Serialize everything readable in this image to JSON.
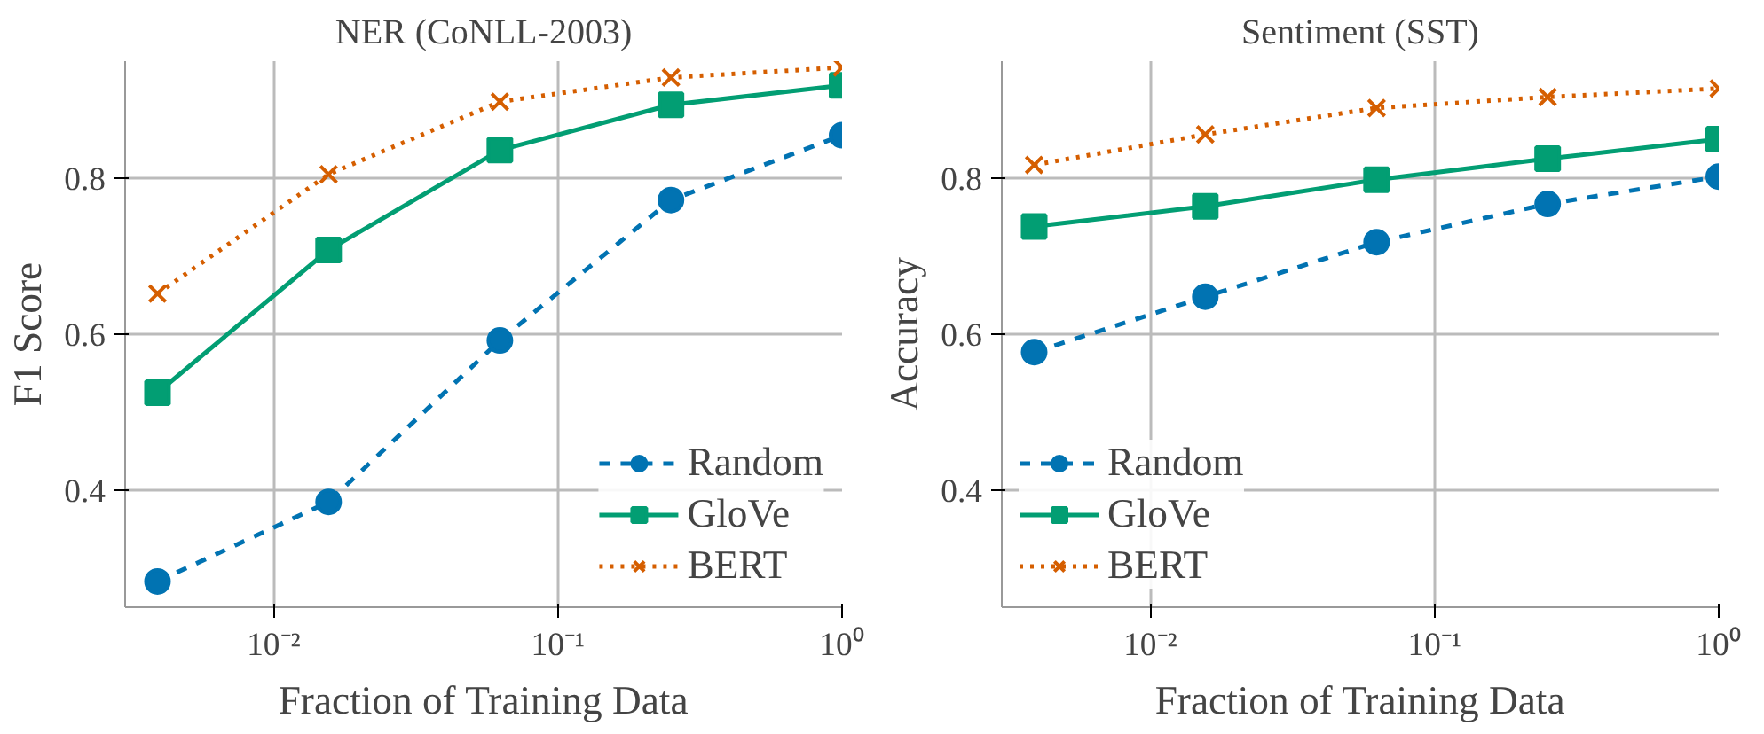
{
  "chart_data": [
    {
      "type": "line",
      "title": "NER (CoNLL-2003)",
      "xlabel": "Fraction of Training Data",
      "ylabel": "F1 Score",
      "log": "x",
      "grid": true,
      "legend": "bottom right",
      "x": [
        0.0039,
        0.0156,
        0.0625,
        0.25,
        1
      ],
      "xlim": [
        0.003,
        1
      ],
      "xticks": [
        {
          "value": 0.01,
          "label": "10⁻²"
        },
        {
          "value": 0.1,
          "label": "10⁻¹"
        },
        {
          "value": 1,
          "label": "10⁰"
        }
      ],
      "ylim": [
        0.25,
        0.95
      ],
      "yticks": [
        0.4,
        0.6,
        0.8
      ],
      "series": [
        {
          "name": "Random",
          "color": "#0173b2",
          "marker": "circle",
          "line_style": "dashed",
          "values": [
            0.283,
            0.385,
            0.592,
            0.772,
            0.855
          ]
        },
        {
          "name": "GloVe",
          "color": "#029e73",
          "marker": "square",
          "line_style": "solid",
          "values": [
            0.525,
            0.708,
            0.836,
            0.894,
            0.919
          ]
        },
        {
          "name": "BERT",
          "color": "#d55e00",
          "marker": "cross",
          "line_style": "dotted",
          "values": [
            0.652,
            0.805,
            0.898,
            0.929,
            0.942
          ]
        }
      ]
    },
    {
      "type": "line",
      "title": "Sentiment (SST)",
      "xlabel": "Fraction of Training Data",
      "ylabel": "Accuracy",
      "log": "x",
      "grid": true,
      "legend": "bottom left",
      "x": [
        0.0039,
        0.0156,
        0.0625,
        0.25,
        1
      ],
      "xlim": [
        0.003,
        1
      ],
      "xticks": [
        {
          "value": 0.01,
          "label": "10⁻²"
        },
        {
          "value": 0.1,
          "label": "10⁻¹"
        },
        {
          "value": 1,
          "label": "10⁰"
        }
      ],
      "ylim": [
        0.25,
        0.95
      ],
      "yticks": [
        0.4,
        0.6,
        0.8
      ],
      "series": [
        {
          "name": "Random",
          "color": "#0173b2",
          "marker": "circle",
          "line_style": "dashed",
          "values": [
            0.577,
            0.648,
            0.718,
            0.767,
            0.802
          ]
        },
        {
          "name": "GloVe",
          "color": "#029e73",
          "marker": "square",
          "line_style": "solid",
          "values": [
            0.738,
            0.764,
            0.798,
            0.825,
            0.85
          ]
        },
        {
          "name": "BERT",
          "color": "#d55e00",
          "marker": "cross",
          "line_style": "dotted",
          "values": [
            0.817,
            0.856,
            0.89,
            0.904,
            0.915
          ]
        }
      ]
    }
  ]
}
